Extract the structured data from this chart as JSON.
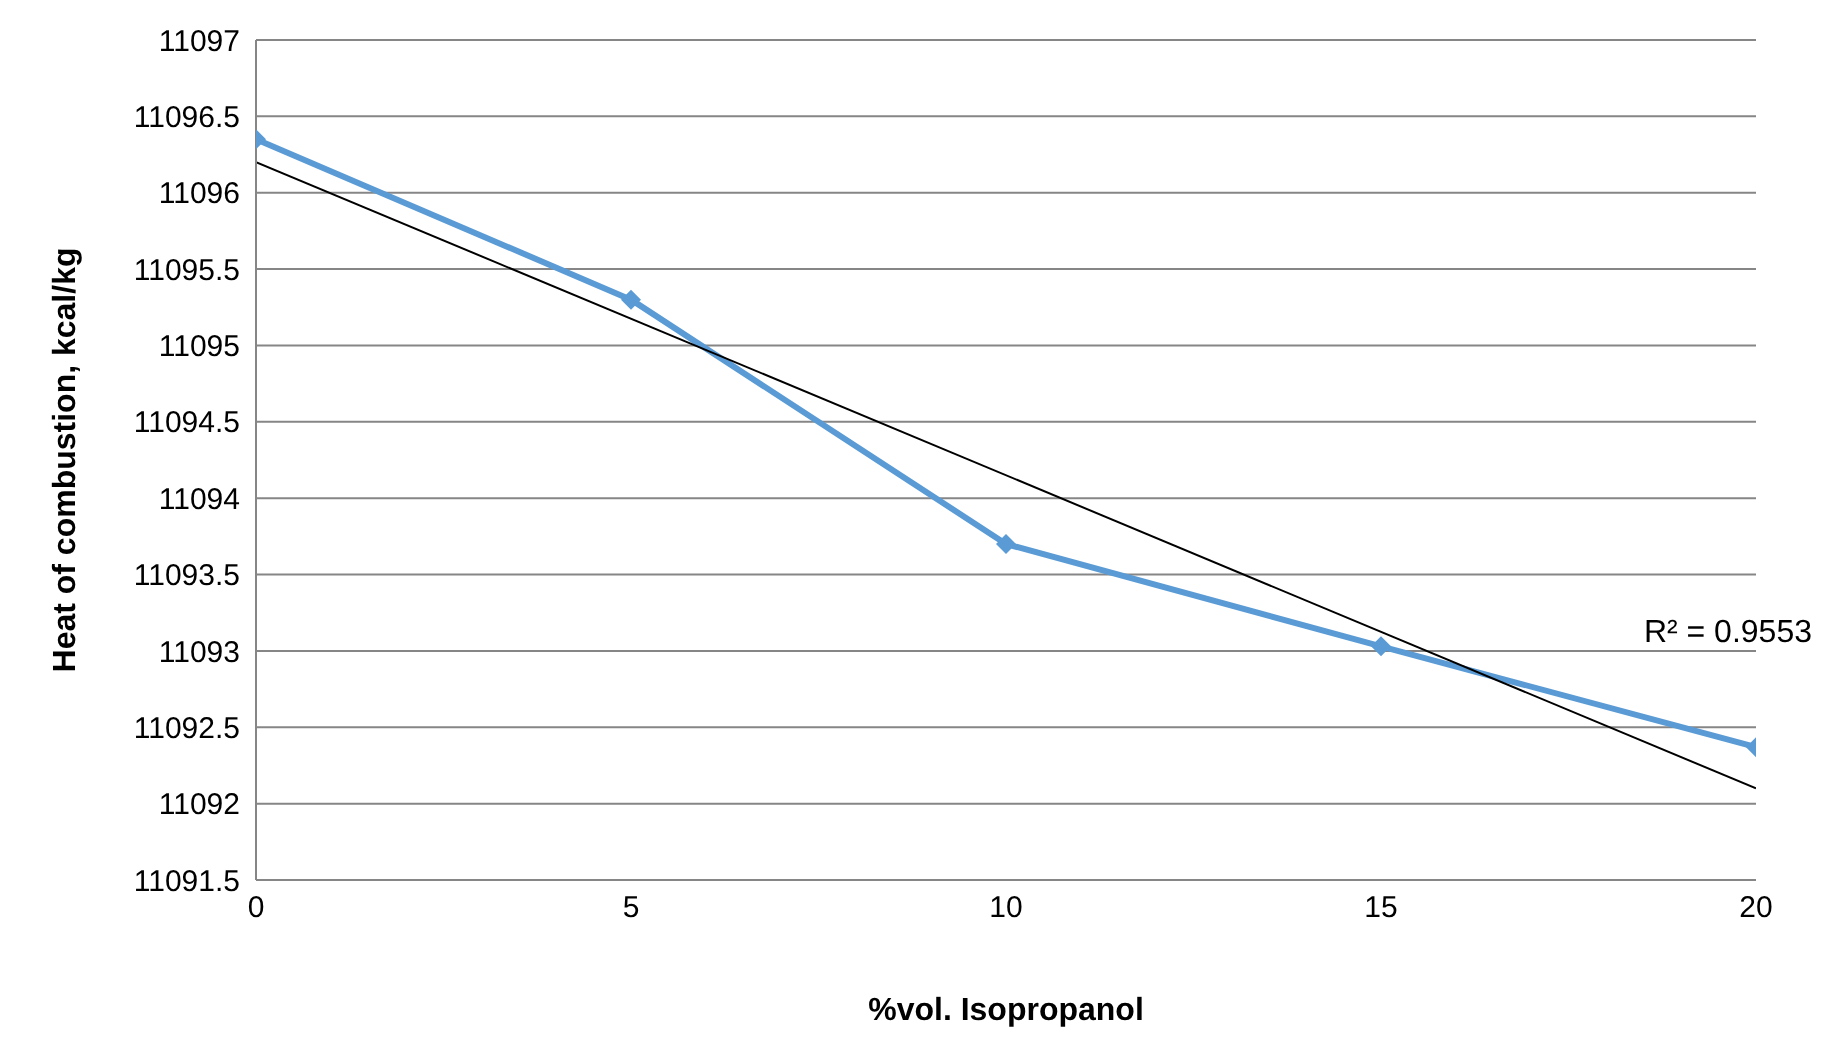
{
  "chart_data": {
    "type": "line",
    "xlabel": "%vol. Isopropanol",
    "ylabel": "Heat of combustion, kcal/kg",
    "x": [
      0,
      5,
      10,
      15,
      20
    ],
    "series": [
      {
        "color": "#5b9bd5",
        "values": [
          11096.35,
          11095.3,
          11093.7,
          11093.03,
          11092.37
        ],
        "marker": "diamond"
      },
      {
        "type": "line",
        "color": "#000000",
        "x": [
          0,
          20
        ],
        "values": [
          11096.2,
          11092.1
        ],
        "marker": "none"
      }
    ],
    "xlim": [
      0,
      20
    ],
    "xticks": [
      0,
      5,
      10,
      15,
      20
    ],
    "ylim": [
      11091.5,
      11097
    ],
    "yticks": [
      11091.5,
      11092,
      11092.5,
      11093,
      11093.5,
      11094,
      11094.5,
      11095,
      11095.5,
      11096,
      11096.5,
      11097
    ],
    "grid": "y",
    "annotations": [
      "R² = 0.9553"
    ]
  }
}
